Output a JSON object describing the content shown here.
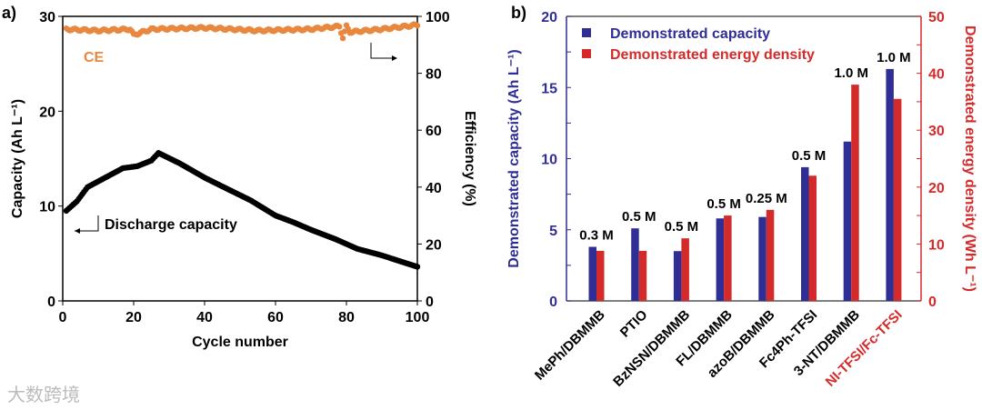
{
  "watermark": "大数跨境",
  "chart_data": [
    {
      "panel_label": "a)",
      "type": "scatter",
      "xlabel": "Cycle number",
      "ylabel": "Capacity (Ah L⁻¹)",
      "y2label": "Efficiency (%)",
      "xlim": [
        0,
        100
      ],
      "ylim": [
        0,
        30
      ],
      "y2lim": [
        0,
        100
      ],
      "xticks": [
        0,
        20,
        40,
        60,
        80,
        100
      ],
      "yticks": [
        0,
        10,
        20,
        30
      ],
      "y2ticks": [
        0,
        20,
        40,
        60,
        80,
        100
      ],
      "annotations": [
        "CE",
        "Discharge capacity"
      ],
      "colors": {
        "capacity": "#000000",
        "ce": "#e8873e"
      },
      "series": [
        {
          "name": "Discharge capacity",
          "axis": "left",
          "key_points": [
            [
              1,
              9.5
            ],
            [
              4,
              10.5
            ],
            [
              7,
              12
            ],
            [
              12,
              13
            ],
            [
              17,
              14
            ],
            [
              21,
              14.2
            ],
            [
              25,
              14.8
            ],
            [
              27,
              15.6
            ],
            [
              33,
              14.5
            ],
            [
              40,
              13
            ],
            [
              47,
              11.7
            ],
            [
              53,
              10.6
            ],
            [
              60,
              9
            ],
            [
              65,
              8.3
            ],
            [
              70,
              7.5
            ],
            [
              77,
              6.5
            ],
            [
              83,
              5.5
            ],
            [
              90,
              4.8
            ],
            [
              95,
              4.2
            ],
            [
              100,
              3.6
            ]
          ]
        },
        {
          "name": "CE",
          "axis": "right",
          "key_points": [
            [
              1,
              95.5
            ],
            [
              10,
              95
            ],
            [
              19,
              95.5
            ],
            [
              20,
              93.5
            ],
            [
              25,
              95.5
            ],
            [
              40,
              96
            ],
            [
              55,
              95
            ],
            [
              70,
              95.5
            ],
            [
              78,
              96.5
            ],
            [
              79,
              92.5
            ],
            [
              80,
              96.5
            ],
            [
              81,
              94.5
            ],
            [
              90,
              95.5
            ],
            [
              100,
              97
            ]
          ]
        }
      ]
    },
    {
      "panel_label": "b)",
      "type": "bar",
      "categories": [
        "MePh/DBMMB",
        "PTIO",
        "BzNSN/DBMMB",
        "FL/DBMMB",
        "azoB/DBMMB",
        "Fc4Ph-TFSI",
        "3-NT/DBMMB",
        "NI-TFSI/Fc-TFSI"
      ],
      "highlight_category": "NI-TFSI/Fc-TFSI",
      "concentrations": [
        "0.3 M",
        "0.5 M",
        "0.5 M",
        "0.5 M",
        "0.25 M",
        "0.5 M",
        "1.0 M",
        "1.0 M"
      ],
      "ylabel": "Demonstrated capacity (Ah L⁻¹)",
      "y2label": "Demonstrated energy density (Wh L⁻¹)",
      "ylim": [
        0,
        20
      ],
      "y2lim": [
        0,
        50
      ],
      "yticks": [
        0,
        5,
        10,
        15,
        20
      ],
      "y2ticks": [
        0,
        10,
        20,
        30,
        40,
        50
      ],
      "legend_position": "top-left",
      "series": [
        {
          "name": "Demonstrated capacity",
          "axis": "left",
          "color": "#2e2e94",
          "values": [
            3.8,
            5.1,
            3.5,
            5.8,
            5.9,
            9.4,
            11.2,
            16.3
          ]
        },
        {
          "name": "Demonstrated energy density",
          "axis": "right",
          "color": "#d42a2a",
          "values": [
            8.8,
            8.8,
            11,
            15,
            16,
            22,
            38,
            35.5
          ]
        }
      ]
    }
  ]
}
